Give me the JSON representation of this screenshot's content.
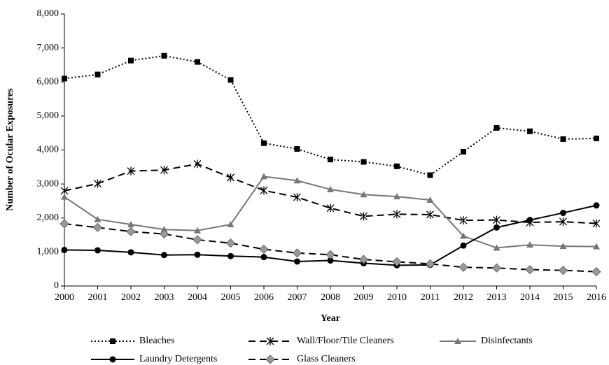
{
  "chart_data": {
    "type": "line",
    "x_label": "Year",
    "y_label": "Number of Ocular Exposures",
    "categories": [
      "2000",
      "2001",
      "2002",
      "2003",
      "2004",
      "2005",
      "2006",
      "2007",
      "2008",
      "2009",
      "2010",
      "2011",
      "2012",
      "2013",
      "2014",
      "2015",
      "2016"
    ],
    "series": [
      {
        "name": "Bleaches",
        "color": "#000000",
        "line_style": "dotted",
        "marker": "square",
        "values": [
          6100,
          6220,
          6630,
          6770,
          6590,
          6060,
          4200,
          4030,
          3720,
          3650,
          3520,
          3260,
          3950,
          4650,
          4550,
          4320,
          4340
        ]
      },
      {
        "name": "Wall/Floor/Tile Cleaners",
        "color": "#000000",
        "line_style": "dashed",
        "marker": "asterisk",
        "values": [
          2800,
          3010,
          3380,
          3410,
          3590,
          3190,
          2810,
          2610,
          2290,
          2050,
          2110,
          2100,
          1930,
          1940,
          1870,
          1890,
          1840
        ]
      },
      {
        "name": "Disinfectants",
        "color": "#777777",
        "line_style": "solid",
        "marker": "triangle",
        "values": [
          2620,
          1960,
          1810,
          1660,
          1630,
          1810,
          3220,
          3100,
          2840,
          2690,
          2630,
          2530,
          1470,
          1120,
          1210,
          1170,
          1160
        ]
      },
      {
        "name": "Laundry Detergents",
        "color": "#000000",
        "line_style": "solid",
        "marker": "circle",
        "values": [
          1060,
          1050,
          990,
          910,
          920,
          880,
          850,
          720,
          750,
          670,
          610,
          620,
          1190,
          1720,
          1940,
          2150,
          2370
        ]
      },
      {
        "name": "Glass Cleaners",
        "color": "#000000",
        "line_style": "dashed",
        "marker": "diamond",
        "values": [
          1830,
          1720,
          1600,
          1530,
          1360,
          1260,
          1080,
          970,
          920,
          780,
          710,
          650,
          550,
          530,
          480,
          460,
          420
        ]
      }
    ],
    "ylim": [
      0,
      8000
    ],
    "yticks": [
      0,
      {
        "value": 1000,
        "label": "1,000"
      },
      {
        "value": 2000,
        "label": "2,000"
      },
      {
        "value": 3000,
        "label": "3,000"
      },
      {
        "value": 4000,
        "label": "4,000"
      },
      {
        "value": 5000,
        "label": "5,000"
      },
      {
        "value": 6000,
        "label": "6,000"
      },
      {
        "value": 7000,
        "label": "7,000"
      },
      {
        "value": 8000,
        "label": "8,000"
      }
    ],
    "grid": false,
    "legend": "bottom"
  }
}
